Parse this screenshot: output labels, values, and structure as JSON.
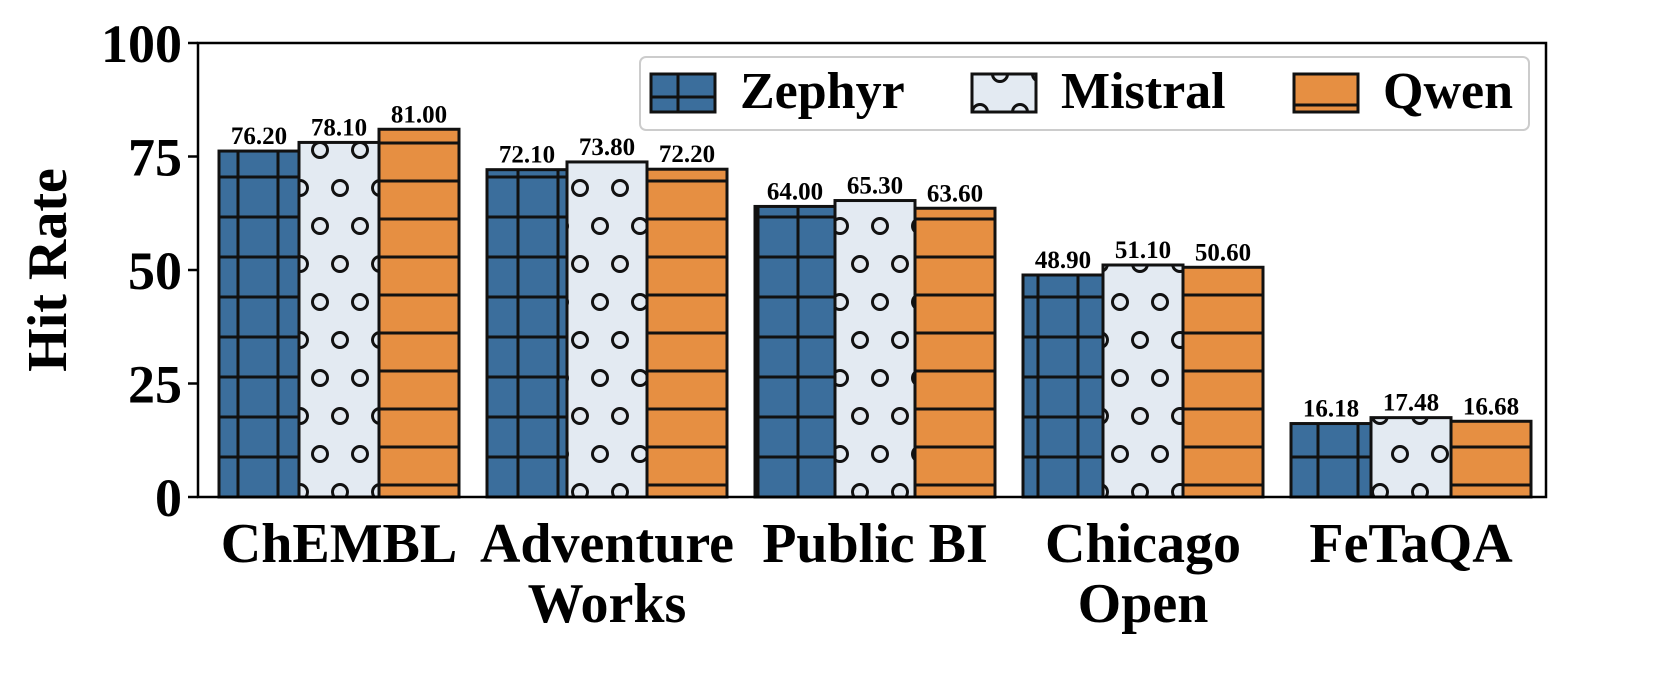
{
  "chart_data": {
    "type": "bar",
    "categories": [
      [
        "ChEMBL"
      ],
      [
        "Adventure",
        "Works"
      ],
      [
        "Public BI"
      ],
      [
        "Chicago",
        "Open"
      ],
      [
        "FeTaQA"
      ]
    ],
    "series": [
      {
        "name": "Zephyr",
        "values": [
          76.2,
          72.1,
          64.0,
          48.9,
          16.18
        ],
        "labels": [
          "76.20",
          "72.10",
          "64.00",
          "48.90",
          "16.18"
        ],
        "color": "#3b6e9c",
        "pattern": "grid"
      },
      {
        "name": "Mistral",
        "values": [
          78.1,
          73.8,
          65.3,
          51.1,
          17.48
        ],
        "labels": [
          "78.10",
          "73.80",
          "65.30",
          "51.10",
          "17.48"
        ],
        "color": "#e3eaf2",
        "pattern": "circles"
      },
      {
        "name": "Qwen",
        "values": [
          81.0,
          72.2,
          63.6,
          50.6,
          16.68
        ],
        "labels": [
          "81.00",
          "72.20",
          "63.60",
          "50.60",
          "16.68"
        ],
        "color": "#e68f42",
        "pattern": "horizontal"
      }
    ],
    "ylabel": "Hit Rate",
    "xlabel": "",
    "ylim": [
      0,
      100
    ],
    "yticks": [
      "0",
      "25",
      "50",
      "75",
      "100"
    ],
    "grid": false,
    "legend_position": "top-right"
  }
}
